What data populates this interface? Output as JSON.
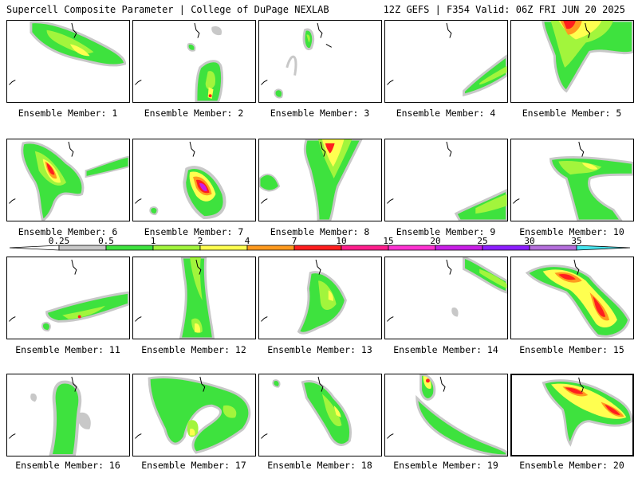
{
  "header": {
    "left": "Supercell Composite Parameter | College of DuPage NEXLAB",
    "right": "12Z GEFS | F354 Valid: 06Z FRI JUN 20 2025"
  },
  "colorbar": {
    "ticks": [
      "0.25",
      "0.5",
      "1",
      "2",
      "4",
      "7",
      "10",
      "15",
      "20",
      "25",
      "30",
      "35"
    ],
    "colors": [
      "#c8c8c8",
      "#3ee23e",
      "#a2f53c",
      "#ffff50",
      "#ff9a1e",
      "#ff1e1e",
      "#ff1e8c",
      "#ff32d2",
      "#c81ee6",
      "#8c1eff",
      "#b46edc",
      "#46e6f0"
    ]
  },
  "members": [
    {
      "label": "Ensemble Member: 1"
    },
    {
      "label": "Ensemble Member: 2"
    },
    {
      "label": "Ensemble Member: 3"
    },
    {
      "label": "Ensemble Member: 4"
    },
    {
      "label": "Ensemble Member: 5"
    },
    {
      "label": "Ensemble Member: 6"
    },
    {
      "label": "Ensemble Member: 7"
    },
    {
      "label": "Ensemble Member: 8"
    },
    {
      "label": "Ensemble Member: 9"
    },
    {
      "label": "Ensemble Member: 10"
    },
    {
      "label": "Ensemble Member: 11"
    },
    {
      "label": "Ensemble Member: 12"
    },
    {
      "label": "Ensemble Member: 13"
    },
    {
      "label": "Ensemble Member: 14"
    },
    {
      "label": "Ensemble Member: 15"
    },
    {
      "label": "Ensemble Member: 16"
    },
    {
      "label": "Ensemble Member: 17"
    },
    {
      "label": "Ensemble Member: 18"
    },
    {
      "label": "Ensemble Member: 19"
    },
    {
      "label": "Ensemble Member: 20"
    }
  ]
}
